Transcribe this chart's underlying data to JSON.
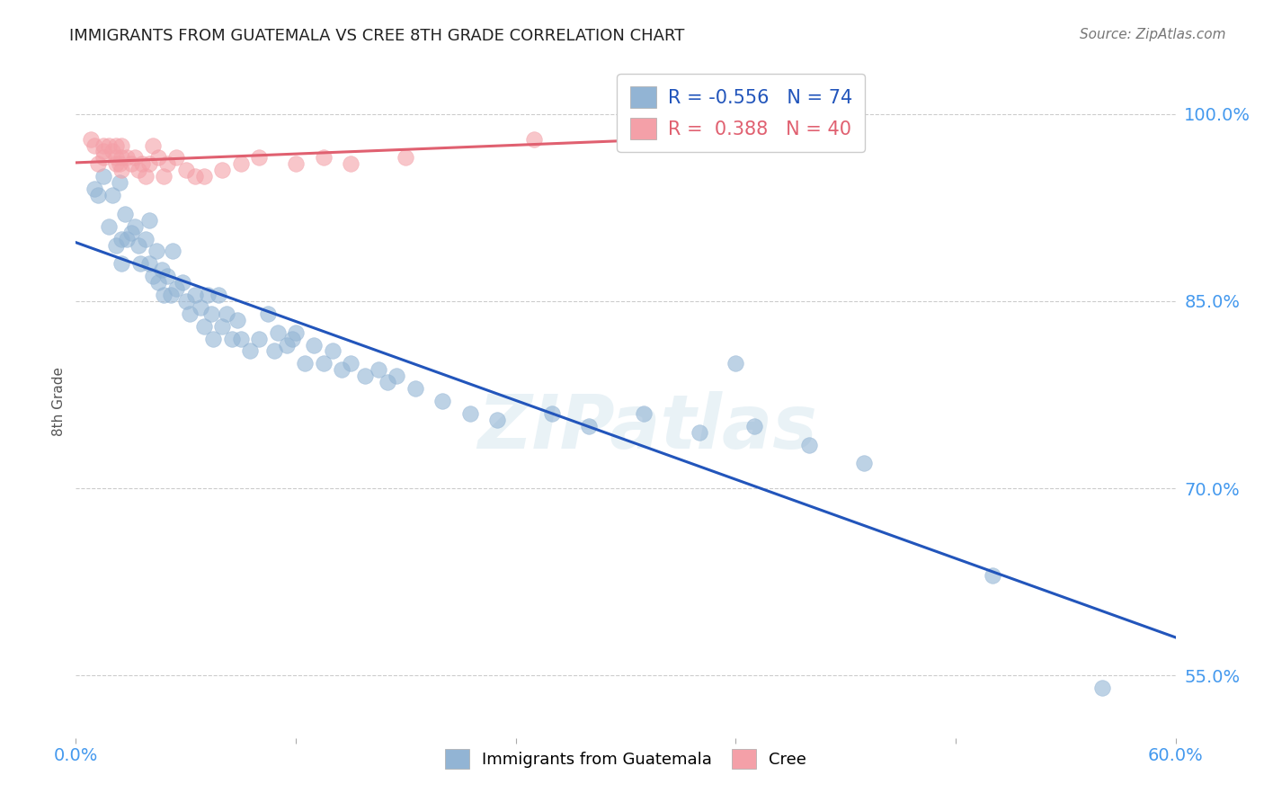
{
  "title": "IMMIGRANTS FROM GUATEMALA VS CREE 8TH GRADE CORRELATION CHART",
  "source": "Source: ZipAtlas.com",
  "ylabel": "8th Grade",
  "xlim": [
    0.0,
    0.6
  ],
  "ylim": [
    0.5,
    1.04
  ],
  "xtick_positions": [
    0.0,
    0.12,
    0.24,
    0.36,
    0.48,
    0.6
  ],
  "xtick_labels": [
    "0.0%",
    "",
    "",
    "",
    "",
    "60.0%"
  ],
  "ytick_positions": [
    0.55,
    0.7,
    0.85,
    1.0
  ],
  "ytick_labels": [
    "55.0%",
    "70.0%",
    "85.0%",
    "100.0%"
  ],
  "blue_R": -0.556,
  "blue_N": 74,
  "pink_R": 0.388,
  "pink_N": 40,
  "blue_color": "#92B4D4",
  "pink_color": "#F4A0A8",
  "blue_line_color": "#2255BB",
  "pink_line_color": "#E06070",
  "background_color": "#FFFFFF",
  "watermark": "ZIPatlas",
  "blue_scatter_x": [
    0.01,
    0.012,
    0.015,
    0.018,
    0.02,
    0.022,
    0.024,
    0.025,
    0.025,
    0.027,
    0.028,
    0.03,
    0.032,
    0.034,
    0.035,
    0.038,
    0.04,
    0.04,
    0.042,
    0.044,
    0.045,
    0.047,
    0.048,
    0.05,
    0.052,
    0.053,
    0.055,
    0.058,
    0.06,
    0.062,
    0.065,
    0.068,
    0.07,
    0.072,
    0.074,
    0.075,
    0.078,
    0.08,
    0.082,
    0.085,
    0.088,
    0.09,
    0.095,
    0.1,
    0.105,
    0.108,
    0.11,
    0.115,
    0.118,
    0.12,
    0.125,
    0.13,
    0.135,
    0.14,
    0.145,
    0.15,
    0.158,
    0.165,
    0.17,
    0.175,
    0.185,
    0.2,
    0.215,
    0.23,
    0.26,
    0.28,
    0.31,
    0.34,
    0.37,
    0.4,
    0.43,
    0.36,
    0.5,
    0.56
  ],
  "blue_scatter_y": [
    0.94,
    0.935,
    0.95,
    0.91,
    0.935,
    0.895,
    0.945,
    0.9,
    0.88,
    0.92,
    0.9,
    0.905,
    0.91,
    0.895,
    0.88,
    0.9,
    0.88,
    0.915,
    0.87,
    0.89,
    0.865,
    0.875,
    0.855,
    0.87,
    0.855,
    0.89,
    0.86,
    0.865,
    0.85,
    0.84,
    0.855,
    0.845,
    0.83,
    0.855,
    0.84,
    0.82,
    0.855,
    0.83,
    0.84,
    0.82,
    0.835,
    0.82,
    0.81,
    0.82,
    0.84,
    0.81,
    0.825,
    0.815,
    0.82,
    0.825,
    0.8,
    0.815,
    0.8,
    0.81,
    0.795,
    0.8,
    0.79,
    0.795,
    0.785,
    0.79,
    0.78,
    0.77,
    0.76,
    0.755,
    0.76,
    0.75,
    0.76,
    0.745,
    0.75,
    0.735,
    0.72,
    0.8,
    0.63,
    0.54
  ],
  "pink_scatter_x": [
    0.008,
    0.01,
    0.012,
    0.015,
    0.015,
    0.015,
    0.018,
    0.02,
    0.022,
    0.022,
    0.022,
    0.024,
    0.025,
    0.025,
    0.025,
    0.028,
    0.03,
    0.032,
    0.034,
    0.036,
    0.038,
    0.04,
    0.042,
    0.045,
    0.048,
    0.05,
    0.055,
    0.06,
    0.065,
    0.07,
    0.08,
    0.09,
    0.1,
    0.12,
    0.135,
    0.15,
    0.18,
    0.25,
    0.33,
    0.39
  ],
  "pink_scatter_y": [
    0.98,
    0.975,
    0.96,
    0.975,
    0.965,
    0.97,
    0.975,
    0.97,
    0.96,
    0.975,
    0.965,
    0.96,
    0.975,
    0.965,
    0.955,
    0.965,
    0.96,
    0.965,
    0.955,
    0.96,
    0.95,
    0.96,
    0.975,
    0.965,
    0.95,
    0.96,
    0.965,
    0.955,
    0.95,
    0.95,
    0.955,
    0.96,
    0.965,
    0.96,
    0.965,
    0.96,
    0.965,
    0.98,
    0.995,
    0.99
  ]
}
